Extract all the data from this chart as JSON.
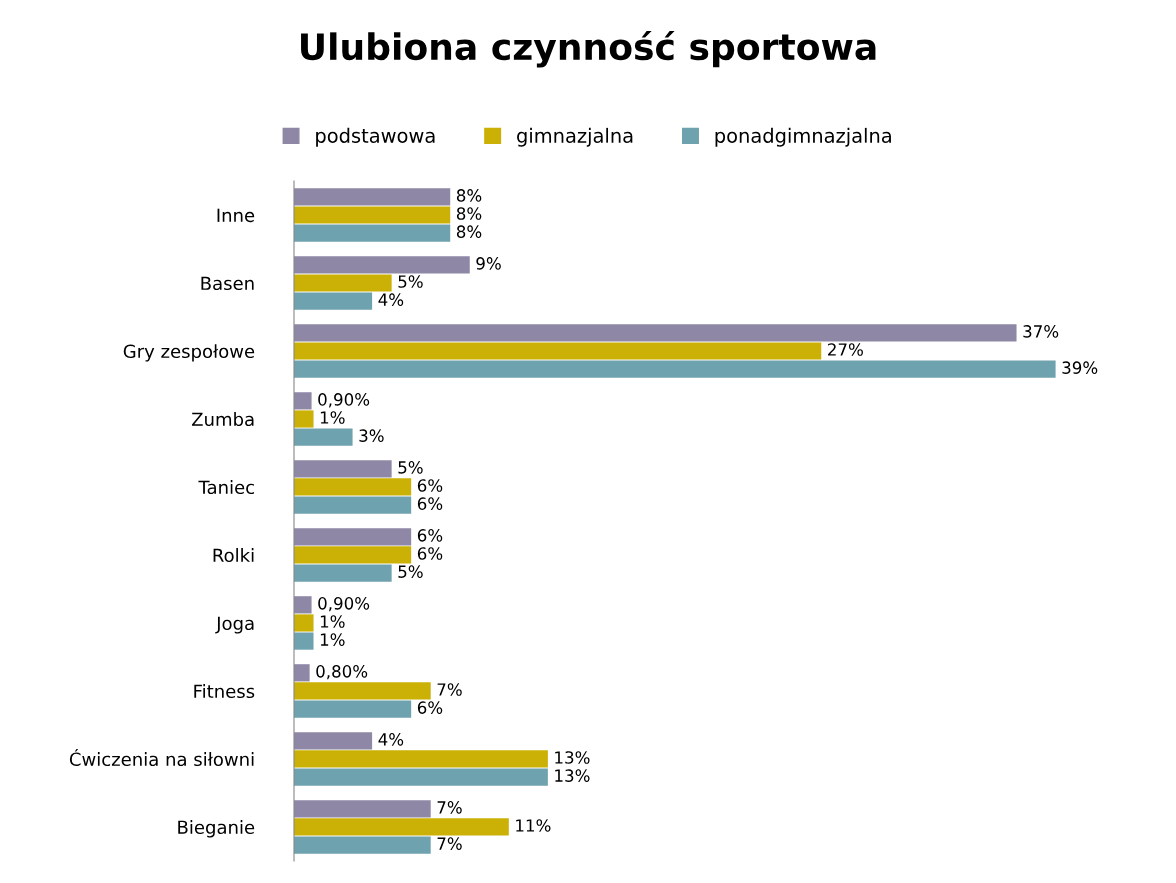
{
  "chart_data": {
    "type": "bar",
    "orientation": "horizontal",
    "title": "Ulubiona czynność sportowa",
    "categories": [
      "Inne",
      "Basen",
      "Gry zespołowe",
      "Zumba",
      "Taniec",
      "Rolki",
      "Joga",
      "Fitness",
      "Ćwiczenia na siłowni",
      "Bieganie"
    ],
    "series": [
      {
        "name": "podstawowa",
        "color": "#8e87a5",
        "values": [
          8,
          9,
          37,
          0.9,
          5,
          6,
          0.9,
          0.8,
          4,
          7
        ],
        "value_labels": [
          "8%",
          "9%",
          "37%",
          "0,90%",
          "5%",
          "6%",
          "0,90%",
          "0,80%",
          "4%",
          "7%"
        ]
      },
      {
        "name": "gimnazjalna",
        "color": "#cbb005",
        "values": [
          8,
          5,
          27,
          1,
          6,
          6,
          1,
          7,
          13,
          11
        ],
        "value_labels": [
          "8%",
          "5%",
          "27%",
          "1%",
          "6%",
          "6%",
          "1%",
          "7%",
          "13%",
          "11%"
        ]
      },
      {
        "name": "ponadgimnazjalna",
        "color": "#6ea2ae",
        "values": [
          8,
          4,
          39,
          3,
          6,
          5,
          1,
          6,
          13,
          7
        ],
        "value_labels": [
          "8%",
          "4%",
          "39%",
          "3%",
          "6%",
          "5%",
          "1%",
          "6%",
          "13%",
          "7%"
        ]
      }
    ],
    "legend": "top",
    "grid": false,
    "tick_labels": "y"
  }
}
